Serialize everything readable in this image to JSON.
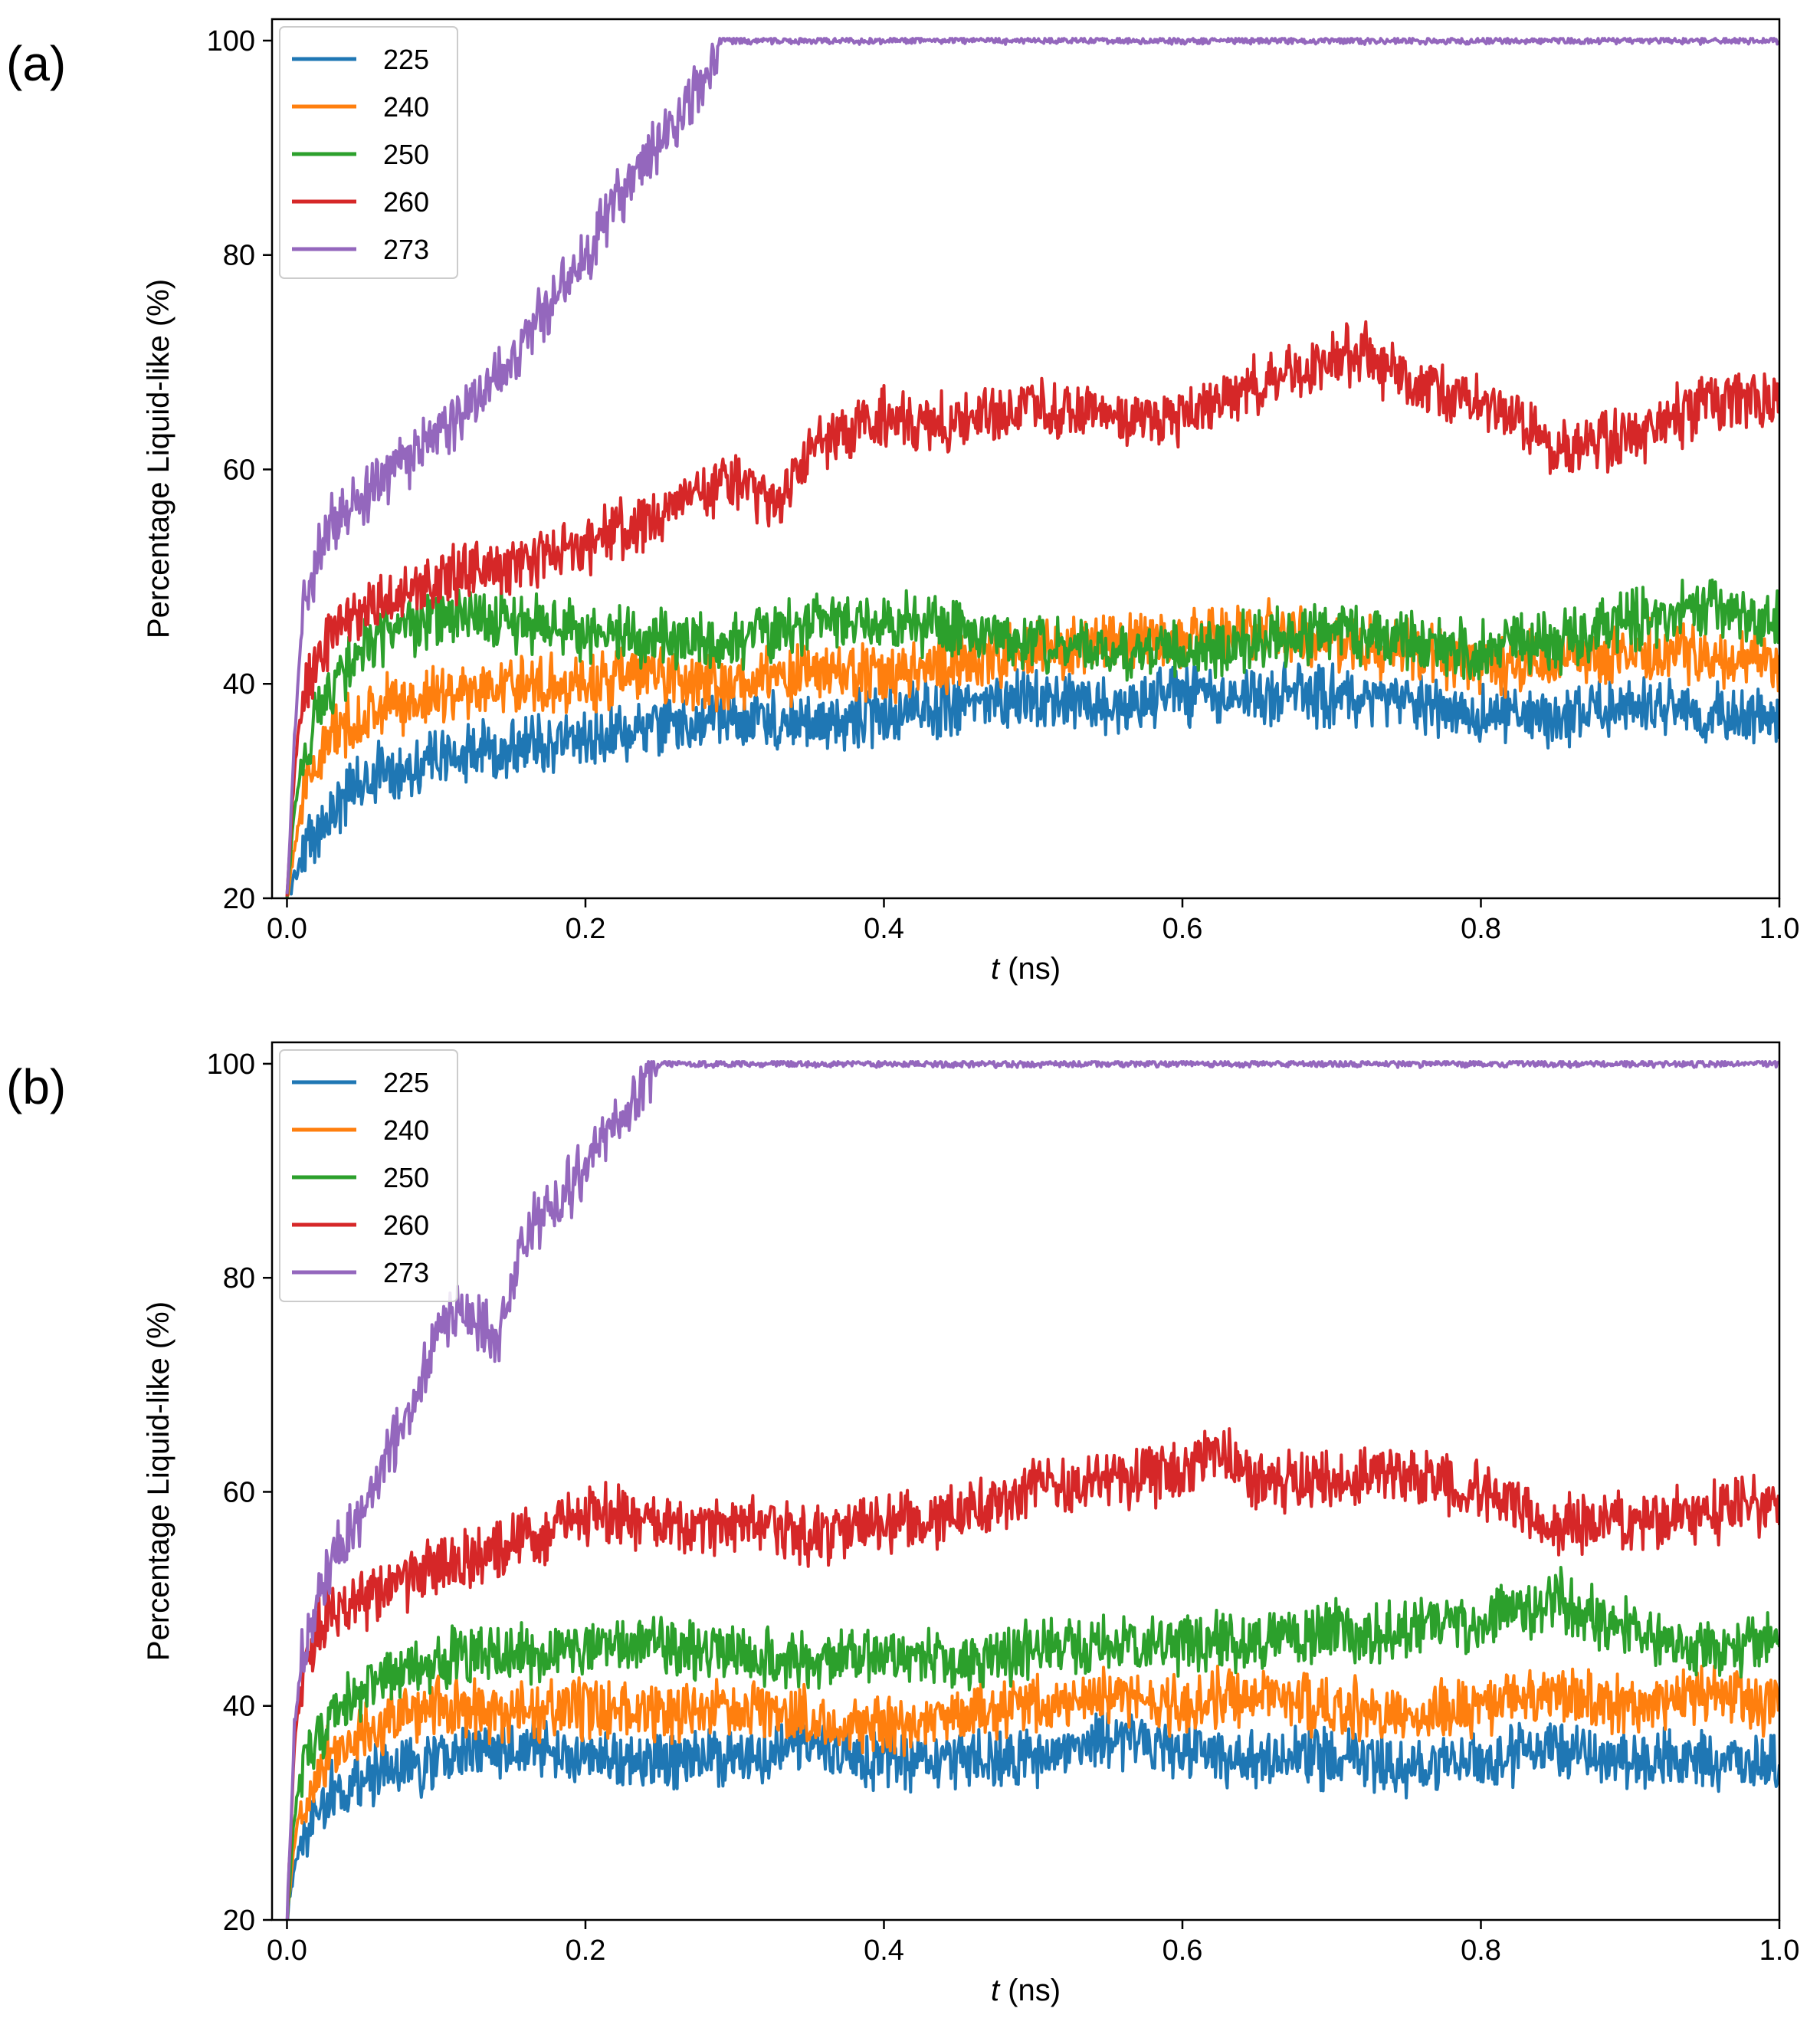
{
  "chart_data": [
    {
      "panel_label": "(a)",
      "type": "line",
      "xlabel_var": "t",
      "xlabel_unit": " (ns)",
      "ylabel": "Percentage Liquid-like (%)",
      "xlim": [
        -0.01,
        1.0
      ],
      "ylim": [
        20,
        102
      ],
      "xticks": [
        0.0,
        0.2,
        0.4,
        0.6,
        0.8,
        1.0
      ],
      "xtick_labels": [
        "0.0",
        "0.2",
        "0.4",
        "0.6",
        "0.8",
        "1.0"
      ],
      "yticks": [
        20,
        40,
        60,
        80,
        100
      ],
      "ytick_labels": [
        "20",
        "40",
        "60",
        "80",
        "100"
      ],
      "legend_position": "top-left",
      "series": [
        {
          "name": "225",
          "color": "#1f77b4",
          "x": [
            0.0,
            0.005,
            0.01,
            0.02,
            0.03,
            0.05,
            0.07,
            0.1,
            0.15,
            0.2,
            0.25,
            0.3,
            0.35,
            0.4,
            0.45,
            0.5,
            0.55,
            0.6,
            0.65,
            0.7,
            0.75,
            0.8,
            0.85,
            0.9,
            0.95,
            1.0
          ],
          "y": [
            20,
            22,
            24,
            26,
            28,
            31,
            32,
            33,
            34,
            35,
            36,
            37,
            36,
            37,
            38,
            39,
            38,
            39,
            39,
            39,
            38,
            37,
            37,
            38,
            37,
            37
          ]
        },
        {
          "name": "240",
          "color": "#ff7f0e",
          "x": [
            0.0,
            0.005,
            0.01,
            0.02,
            0.03,
            0.05,
            0.07,
            0.1,
            0.15,
            0.2,
            0.25,
            0.3,
            0.35,
            0.4,
            0.45,
            0.5,
            0.55,
            0.6,
            0.65,
            0.7,
            0.75,
            0.8,
            0.85,
            0.9,
            0.95,
            1.0
          ],
          "y": [
            20,
            25,
            29,
            33,
            35,
            37,
            38,
            39,
            40,
            40,
            41,
            40,
            41,
            41,
            42,
            43,
            44,
            44,
            45,
            44,
            43,
            42,
            42,
            43,
            43,
            42
          ]
        },
        {
          "name": "250",
          "color": "#2ca02c",
          "x": [
            0.0,
            0.005,
            0.01,
            0.02,
            0.03,
            0.05,
            0.07,
            0.1,
            0.15,
            0.2,
            0.25,
            0.3,
            0.35,
            0.4,
            0.45,
            0.5,
            0.55,
            0.6,
            0.65,
            0.7,
            0.75,
            0.8,
            0.85,
            0.9,
            0.95,
            1.0
          ],
          "y": [
            20,
            28,
            33,
            37,
            40,
            43,
            45,
            46,
            46,
            45,
            44,
            44,
            46,
            46,
            45,
            44,
            43,
            43,
            44,
            45,
            44,
            43,
            44,
            46,
            47,
            46
          ]
        },
        {
          "name": "260",
          "color": "#d62728",
          "x": [
            0.0,
            0.005,
            0.01,
            0.02,
            0.03,
            0.05,
            0.07,
            0.1,
            0.15,
            0.2,
            0.25,
            0.3,
            0.33,
            0.35,
            0.4,
            0.45,
            0.5,
            0.55,
            0.6,
            0.65,
            0.7,
            0.72,
            0.75,
            0.8,
            0.85,
            0.9,
            0.95,
            1.0
          ],
          "y": [
            20,
            32,
            38,
            42,
            45,
            47,
            48,
            50,
            51,
            53,
            56,
            59,
            57,
            62,
            65,
            64,
            66,
            65,
            65,
            68,
            70,
            71,
            68,
            66,
            62,
            63,
            66,
            67
          ]
        },
        {
          "name": "273",
          "color": "#9467bd",
          "x": [
            0.0,
            0.005,
            0.01,
            0.02,
            0.03,
            0.05,
            0.07,
            0.1,
            0.12,
            0.14,
            0.16,
            0.18,
            0.2,
            0.22,
            0.24,
            0.26,
            0.28,
            0.29,
            0.3,
            0.4,
            0.5,
            0.6,
            0.7,
            0.8,
            0.9,
            1.0
          ],
          "y": [
            20,
            35,
            46,
            52,
            55,
            57,
            60,
            63,
            66,
            68,
            72,
            76,
            80,
            85,
            89,
            92,
            97,
            100,
            100,
            100,
            100,
            100,
            100,
            100,
            100,
            100
          ]
        }
      ]
    },
    {
      "panel_label": "(b)",
      "type": "line",
      "xlabel_var": "t",
      "xlabel_unit": " (ns)",
      "ylabel": "Percentage Liquid-like (%)",
      "xlim": [
        -0.01,
        1.0
      ],
      "ylim": [
        20,
        102
      ],
      "xticks": [
        0.0,
        0.2,
        0.4,
        0.6,
        0.8,
        1.0
      ],
      "xtick_labels": [
        "0.0",
        "0.2",
        "0.4",
        "0.6",
        "0.8",
        "1.0"
      ],
      "yticks": [
        20,
        40,
        60,
        80,
        100
      ],
      "ytick_labels": [
        "20",
        "40",
        "60",
        "80",
        "100"
      ],
      "legend_position": "top-left",
      "series": [
        {
          "name": "225",
          "color": "#1f77b4",
          "x": [
            0.0,
            0.005,
            0.01,
            0.02,
            0.03,
            0.05,
            0.07,
            0.1,
            0.15,
            0.2,
            0.25,
            0.3,
            0.35,
            0.4,
            0.45,
            0.5,
            0.55,
            0.6,
            0.65,
            0.7,
            0.75,
            0.8,
            0.85,
            0.9,
            0.95,
            1.0
          ],
          "y": [
            20,
            25,
            28,
            30,
            32,
            33,
            34,
            35,
            36,
            35,
            35,
            35,
            36,
            35,
            35,
            35,
            37,
            36,
            35,
            35,
            34,
            35,
            36,
            35,
            35,
            34
          ]
        },
        {
          "name": "240",
          "color": "#ff7f0e",
          "x": [
            0.0,
            0.005,
            0.01,
            0.02,
            0.03,
            0.05,
            0.07,
            0.1,
            0.15,
            0.2,
            0.25,
            0.3,
            0.35,
            0.4,
            0.45,
            0.5,
            0.55,
            0.6,
            0.65,
            0.7,
            0.75,
            0.8,
            0.85,
            0.9,
            0.95,
            1.0
          ],
          "y": [
            20,
            27,
            31,
            34,
            36,
            37,
            39,
            40,
            39,
            40,
            39,
            40,
            39,
            38,
            39,
            40,
            41,
            40,
            41,
            40,
            39,
            40,
            41,
            40,
            41,
            40
          ]
        },
        {
          "name": "250",
          "color": "#2ca02c",
          "x": [
            0.0,
            0.005,
            0.01,
            0.02,
            0.03,
            0.05,
            0.07,
            0.1,
            0.15,
            0.2,
            0.25,
            0.3,
            0.35,
            0.4,
            0.45,
            0.5,
            0.55,
            0.6,
            0.65,
            0.7,
            0.75,
            0.8,
            0.85,
            0.9,
            0.95,
            1.0
          ],
          "y": [
            20,
            30,
            34,
            37,
            39,
            41,
            43,
            44,
            45,
            45,
            46,
            45,
            44,
            45,
            44,
            45,
            46,
            46,
            46,
            47,
            47,
            48,
            50,
            47,
            45,
            46
          ]
        },
        {
          "name": "260",
          "color": "#d62728",
          "x": [
            0.0,
            0.005,
            0.01,
            0.02,
            0.03,
            0.05,
            0.07,
            0.1,
            0.15,
            0.2,
            0.25,
            0.3,
            0.35,
            0.4,
            0.45,
            0.5,
            0.55,
            0.6,
            0.62,
            0.65,
            0.7,
            0.75,
            0.8,
            0.85,
            0.9,
            0.95,
            1.0
          ],
          "y": [
            20,
            36,
            43,
            47,
            49,
            50,
            51,
            53,
            55,
            58,
            57,
            57,
            56,
            57,
            58,
            60,
            61,
            62,
            64,
            61,
            61,
            62,
            60,
            57,
            57,
            58,
            59
          ]
        },
        {
          "name": "273",
          "color": "#9467bd",
          "x": [
            0.0,
            0.005,
            0.01,
            0.02,
            0.03,
            0.05,
            0.07,
            0.09,
            0.1,
            0.12,
            0.14,
            0.16,
            0.18,
            0.2,
            0.22,
            0.24,
            0.25,
            0.3,
            0.4,
            0.5,
            0.6,
            0.7,
            0.8,
            0.9,
            1.0
          ],
          "y": [
            20,
            38,
            44,
            50,
            54,
            58,
            64,
            70,
            75,
            77,
            74,
            84,
            87,
            90,
            94,
            98,
            100,
            100,
            100,
            100,
            100,
            100,
            100,
            100,
            100
          ]
        }
      ]
    }
  ]
}
